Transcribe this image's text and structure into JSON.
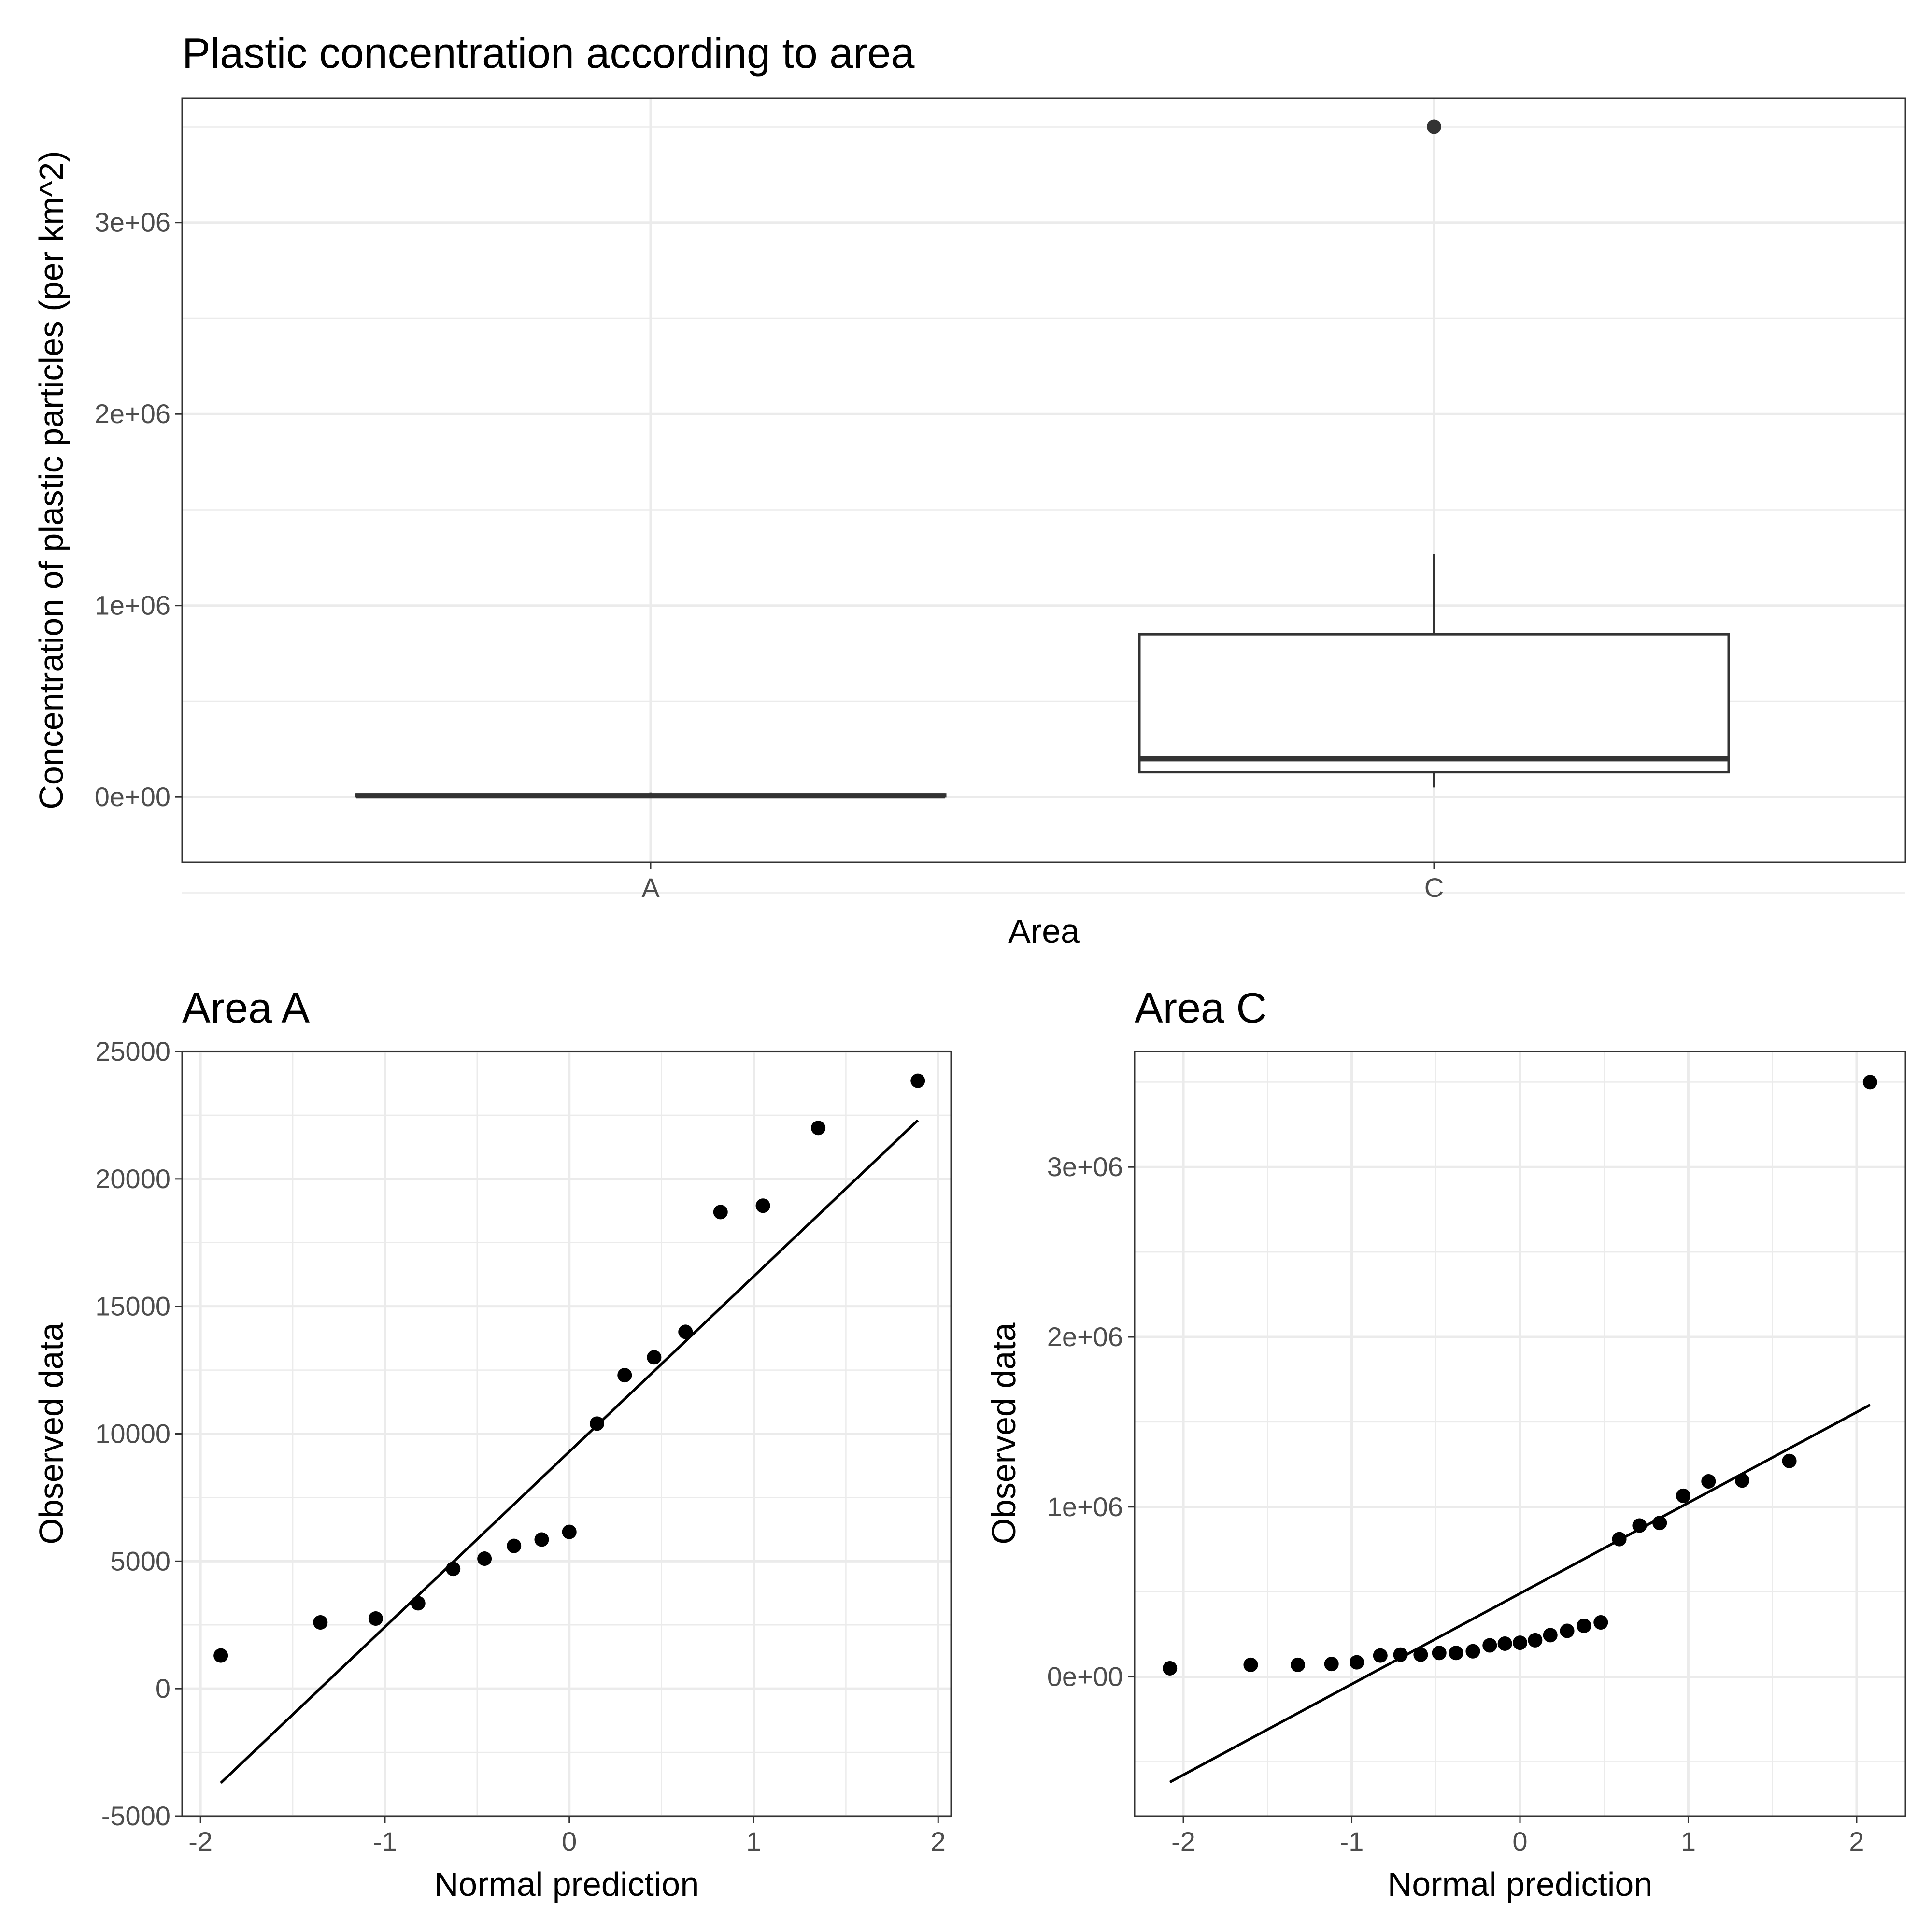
{
  "chart_data": [
    {
      "type": "box",
      "title": "Plastic concentration according to area",
      "xlabel": "Area",
      "ylabel": "Concentration of plastic particles (per km^2)",
      "categories": [
        "A",
        "C"
      ],
      "ylim": [
        -340000,
        3650000
      ],
      "yticks": [
        0,
        1000000,
        2000000,
        3000000
      ],
      "ytick_labels": [
        "0e+00",
        "1e+06",
        "2e+06",
        "3e+06"
      ],
      "boxes": [
        {
          "category": "A",
          "min": 1300,
          "q1": 3300,
          "median": 6200,
          "q3": 14000,
          "max": 23900,
          "outliers": []
        },
        {
          "category": "C",
          "min": 50000,
          "q1": 130000,
          "median": 200000,
          "q3": 850000,
          "max": 1270000,
          "outliers": [
            3500000
          ]
        }
      ],
      "grid": true,
      "legend": "none"
    },
    {
      "type": "scatter",
      "title": "Area A",
      "xlabel": "Normal prediction",
      "ylabel": "Observed data",
      "xlim": [
        -2.1,
        2.07
      ],
      "ylim": [
        -5000,
        25000
      ],
      "xticks": [
        -2,
        -1,
        0,
        1,
        2
      ],
      "yticks": [
        -5000,
        0,
        5000,
        10000,
        15000,
        20000,
        25000
      ],
      "points": [
        {
          "x": -1.89,
          "y": 1300
        },
        {
          "x": -1.35,
          "y": 2600
        },
        {
          "x": -1.05,
          "y": 2750
        },
        {
          "x": -0.82,
          "y": 3350
        },
        {
          "x": -0.63,
          "y": 4700
        },
        {
          "x": -0.46,
          "y": 5100
        },
        {
          "x": -0.3,
          "y": 5600
        },
        {
          "x": -0.15,
          "y": 5850
        },
        {
          "x": 0.0,
          "y": 6150
        },
        {
          "x": 0.15,
          "y": 10400
        },
        {
          "x": 0.3,
          "y": 12300
        },
        {
          "x": 0.46,
          "y": 13000
        },
        {
          "x": 0.63,
          "y": 14000
        },
        {
          "x": 0.82,
          "y": 18700
        },
        {
          "x": 1.05,
          "y": 18950
        },
        {
          "x": 1.35,
          "y": 22000
        },
        {
          "x": 1.89,
          "y": 23850
        }
      ],
      "line": {
        "x": [
          -1.89,
          1.89
        ],
        "y": [
          -3700,
          22300
        ]
      },
      "grid": true,
      "legend": "none"
    },
    {
      "type": "scatter",
      "title": "Area C",
      "xlabel": "Normal prediction",
      "ylabel": "Observed data",
      "xlim": [
        -2.29,
        2.29
      ],
      "ylim": [
        -820000,
        3680000
      ],
      "xticks": [
        -2,
        -1,
        0,
        1,
        2
      ],
      "yticks": [
        0,
        1000000,
        2000000,
        3000000
      ],
      "ytick_labels": [
        "0e+00",
        "1e+06",
        "2e+06",
        "3e+06"
      ],
      "points": [
        {
          "x": -2.08,
          "y": 50000
        },
        {
          "x": -1.6,
          "y": 70000
        },
        {
          "x": -1.32,
          "y": 70000
        },
        {
          "x": -1.12,
          "y": 75000
        },
        {
          "x": -0.97,
          "y": 85000
        },
        {
          "x": -0.83,
          "y": 125000
        },
        {
          "x": -0.71,
          "y": 130000
        },
        {
          "x": -0.59,
          "y": 130000
        },
        {
          "x": -0.48,
          "y": 140000
        },
        {
          "x": -0.38,
          "y": 140000
        },
        {
          "x": -0.28,
          "y": 150000
        },
        {
          "x": -0.18,
          "y": 185000
        },
        {
          "x": -0.09,
          "y": 195000
        },
        {
          "x": 0.0,
          "y": 200000
        },
        {
          "x": 0.09,
          "y": 215000
        },
        {
          "x": 0.18,
          "y": 245000
        },
        {
          "x": 0.28,
          "y": 270000
        },
        {
          "x": 0.38,
          "y": 300000
        },
        {
          "x": 0.48,
          "y": 320000
        },
        {
          "x": 0.59,
          "y": 810000
        },
        {
          "x": 0.71,
          "y": 890000
        },
        {
          "x": 0.83,
          "y": 905000
        },
        {
          "x": 0.97,
          "y": 1065000
        },
        {
          "x": 1.12,
          "y": 1150000
        },
        {
          "x": 1.32,
          "y": 1155000
        },
        {
          "x": 1.6,
          "y": 1270000
        },
        {
          "x": 2.08,
          "y": 3500000
        }
      ],
      "line": {
        "x": [
          -2.08,
          2.08
        ],
        "y": [
          -620000,
          1600000
        ]
      },
      "grid": true,
      "legend": "none"
    }
  ]
}
